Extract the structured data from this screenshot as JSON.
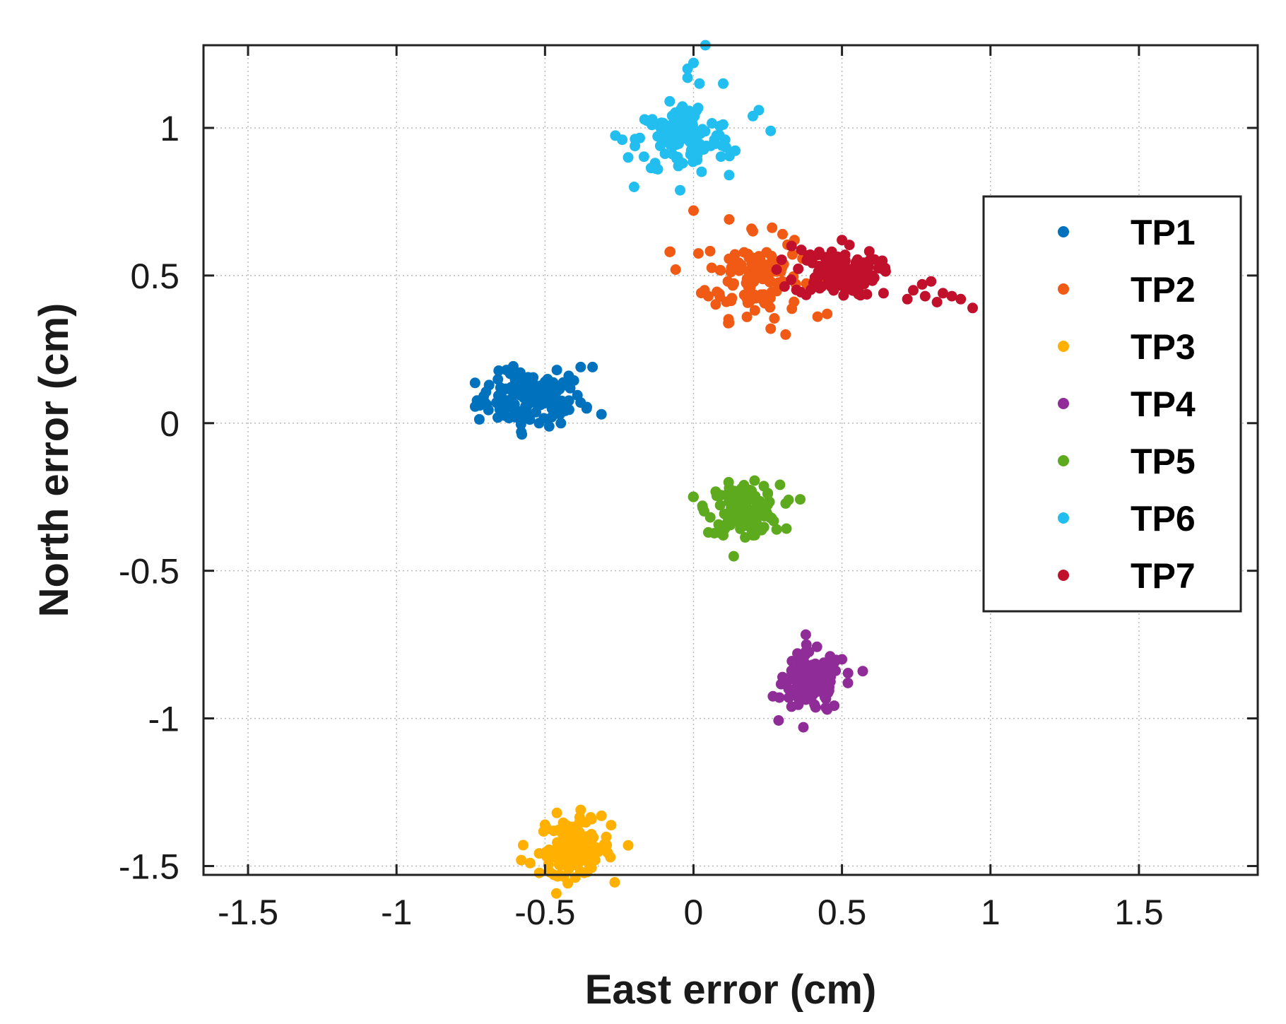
{
  "chart_data": {
    "type": "scatter",
    "title": "",
    "xlabel": "East error (cm)",
    "ylabel": "North error (cm)",
    "xlim": [
      -1.65,
      1.9
    ],
    "ylim": [
      -1.53,
      1.28
    ],
    "xticks": [
      -1.5,
      -1,
      -0.5,
      0,
      0.5,
      1,
      1.5
    ],
    "xtick_labels": [
      "-1.5",
      "-1",
      "-0.5",
      "0",
      "0.5",
      "1",
      "1.5"
    ],
    "yticks": [
      -1.5,
      -1,
      -0.5,
      0,
      0.5,
      1
    ],
    "ytick_labels": [
      "-1.5",
      "-1",
      "-0.5",
      "0",
      "0.5",
      "1"
    ],
    "grid": "dotted",
    "legend_position": "right",
    "series": [
      {
        "name": "TP1",
        "color": "#0072BD",
        "center": [
          -0.55,
          0.08
        ],
        "spread": [
          0.09,
          0.045
        ],
        "points": [
          [
            -0.72,
            0.06
          ],
          [
            -0.65,
            0.12
          ],
          [
            -0.63,
            0.18
          ],
          [
            -0.6,
            0.02
          ],
          [
            -0.58,
            -0.03
          ],
          [
            -0.52,
            0.0
          ],
          [
            -0.5,
            0.14
          ],
          [
            -0.48,
            0.07
          ],
          [
            -0.46,
            0.18
          ],
          [
            -0.42,
            0.16
          ],
          [
            -0.38,
            0.19
          ],
          [
            -0.34,
            0.19
          ],
          [
            -0.31,
            0.03
          ],
          [
            -0.36,
            0.05
          ],
          [
            -0.45,
            0.03
          ],
          [
            -0.55,
            0.15
          ]
        ]
      },
      {
        "name": "TP2",
        "color": "#F05A14",
        "center": [
          0.2,
          0.5
        ],
        "spread": [
          0.08,
          0.07
        ],
        "points": [
          [
            -0.08,
            0.58
          ],
          [
            0.0,
            0.72
          ],
          [
            0.12,
            0.69
          ],
          [
            0.2,
            0.65
          ],
          [
            0.3,
            0.64
          ],
          [
            0.31,
            0.3
          ],
          [
            0.26,
            0.32
          ],
          [
            0.12,
            0.34
          ],
          [
            0.05,
            0.43
          ],
          [
            -0.06,
            0.52
          ],
          [
            0.18,
            0.36
          ],
          [
            0.45,
            0.37
          ],
          [
            0.4,
            0.55
          ],
          [
            0.34,
            0.62
          ]
        ]
      },
      {
        "name": "TP3",
        "color": "#FFB000",
        "center": [
          -0.4,
          -1.44
        ],
        "spread": [
          0.06,
          0.045
        ],
        "points": [
          [
            -0.58,
            -1.48
          ],
          [
            -0.55,
            -1.49
          ],
          [
            -0.5,
            -1.36
          ],
          [
            -0.46,
            -1.32
          ],
          [
            -0.47,
            -1.53
          ],
          [
            -0.45,
            -1.53
          ],
          [
            -0.38,
            -1.31
          ],
          [
            -0.31,
            -1.33
          ],
          [
            -0.28,
            -1.47
          ],
          [
            -0.22,
            -1.43
          ],
          [
            -0.35,
            -1.5
          ],
          [
            -0.42,
            -1.51
          ]
        ]
      },
      {
        "name": "TP4",
        "color": "#902C98",
        "center": [
          0.4,
          -0.88
        ],
        "spread": [
          0.05,
          0.05
        ],
        "points": [
          [
            0.3,
            -0.86
          ],
          [
            0.33,
            -0.96
          ],
          [
            0.35,
            -0.78
          ],
          [
            0.37,
            -1.03
          ],
          [
            0.38,
            -0.75
          ],
          [
            0.46,
            -0.79
          ],
          [
            0.5,
            -0.8
          ],
          [
            0.52,
            -0.88
          ],
          [
            0.57,
            -0.84
          ],
          [
            0.45,
            -0.97
          ],
          [
            0.32,
            -0.9
          ]
        ]
      },
      {
        "name": "TP5",
        "color": "#5DAA1E",
        "center": [
          0.17,
          -0.29
        ],
        "spread": [
          0.06,
          0.04
        ],
        "points": [
          [
            0.0,
            -0.25
          ],
          [
            0.03,
            -0.28
          ],
          [
            0.05,
            -0.37
          ],
          [
            0.1,
            -0.38
          ],
          [
            0.12,
            -0.22
          ],
          [
            0.17,
            -0.21
          ],
          [
            0.2,
            -0.38
          ],
          [
            0.25,
            -0.24
          ],
          [
            0.28,
            -0.36
          ],
          [
            0.32,
            -0.26
          ]
        ]
      },
      {
        "name": "TP6",
        "color": "#21BEEF",
        "center": [
          -0.03,
          0.96
        ],
        "spread": [
          0.08,
          0.06
        ],
        "points": [
          [
            -0.24,
            0.96
          ],
          [
            -0.2,
            0.8
          ],
          [
            -0.22,
            0.9
          ],
          [
            -0.14,
            1.01
          ],
          [
            -0.12,
            0.86
          ],
          [
            -0.08,
            1.09
          ],
          [
            -0.02,
            1.2
          ],
          [
            -0.02,
            1.17
          ],
          [
            0.0,
            1.22
          ],
          [
            0.02,
            1.15
          ],
          [
            0.04,
            1.28
          ],
          [
            0.1,
            1.15
          ],
          [
            0.12,
            0.84
          ],
          [
            0.2,
            1.04
          ],
          [
            0.22,
            1.06
          ],
          [
            0.26,
            0.99
          ]
        ]
      },
      {
        "name": "TP7",
        "color": "#C0102B",
        "center": [
          0.48,
          0.51
        ],
        "spread": [
          0.07,
          0.04
        ],
        "points": [
          [
            0.28,
            0.52
          ],
          [
            0.33,
            0.6
          ],
          [
            0.42,
            0.57
          ],
          [
            0.5,
            0.62
          ],
          [
            0.55,
            0.45
          ],
          [
            0.6,
            0.5
          ],
          [
            0.64,
            0.52
          ],
          [
            0.64,
            0.44
          ],
          [
            0.72,
            0.42
          ],
          [
            0.74,
            0.45
          ],
          [
            0.77,
            0.47
          ],
          [
            0.8,
            0.48
          ],
          [
            0.82,
            0.41
          ],
          [
            0.84,
            0.44
          ],
          [
            0.87,
            0.43
          ],
          [
            0.9,
            0.42
          ],
          [
            0.94,
            0.39
          ],
          [
            0.78,
            0.43
          ]
        ]
      }
    ]
  }
}
